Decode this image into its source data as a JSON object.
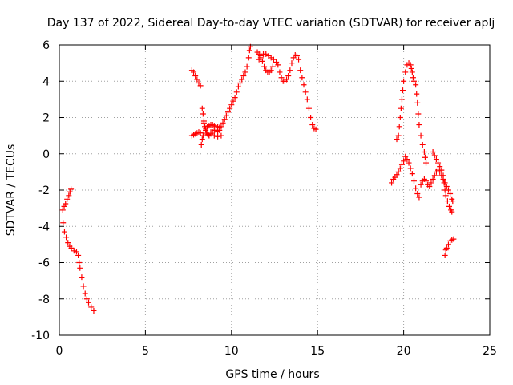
{
  "chart_data": {
    "type": "scatter",
    "title": "Day 137 of 2022, Sidereal Day-to-day VTEC variation (SDTVAR) for receiver aplj",
    "xlabel": "GPS time / hours",
    "ylabel": "SDTVAR / TECUs",
    "xlim": [
      0,
      25
    ],
    "ylim": [
      -10,
      6
    ],
    "xticks": [
      "0",
      "5",
      "10",
      "15",
      "20",
      "25"
    ],
    "yticks": [
      "-10",
      "-8",
      "-6",
      "-4",
      "-2",
      "0",
      "2",
      "4",
      "6"
    ],
    "grid": true,
    "marker": "plus",
    "color": "#ff0000",
    "series": [
      {
        "points": [
          [
            0.2,
            -3.1
          ],
          [
            0.28,
            -2.9
          ],
          [
            0.36,
            -2.75
          ],
          [
            0.45,
            -2.5
          ],
          [
            0.55,
            -2.3
          ],
          [
            0.62,
            -2.1
          ],
          [
            0.68,
            -1.95
          ]
        ]
      },
      {
        "points": [
          [
            0.22,
            -3.8
          ],
          [
            0.3,
            -4.3
          ],
          [
            0.4,
            -4.6
          ],
          [
            0.5,
            -4.9
          ],
          [
            0.6,
            -5.1
          ],
          [
            0.7,
            -5.2
          ],
          [
            0.85,
            -5.35
          ],
          [
            1.0,
            -5.4
          ],
          [
            1.1,
            -5.6
          ],
          [
            1.15,
            -6.0
          ],
          [
            1.2,
            -6.3
          ],
          [
            1.3,
            -6.8
          ],
          [
            1.4,
            -7.3
          ],
          [
            1.5,
            -7.7
          ],
          [
            1.6,
            -8.0
          ],
          [
            1.7,
            -8.2
          ],
          [
            1.85,
            -8.45
          ],
          [
            2.0,
            -8.65
          ]
        ]
      },
      {
        "points": [
          [
            7.7,
            4.6
          ],
          [
            7.8,
            4.5
          ],
          [
            7.9,
            4.3
          ],
          [
            8.0,
            4.1
          ],
          [
            8.1,
            3.9
          ],
          [
            8.2,
            3.75
          ]
        ]
      },
      {
        "points": [
          [
            7.7,
            1.0
          ],
          [
            7.8,
            1.05
          ],
          [
            7.9,
            1.1
          ],
          [
            8.0,
            1.15
          ],
          [
            8.1,
            1.2
          ],
          [
            8.2,
            1.15
          ]
        ]
      },
      {
        "points": [
          [
            8.3,
            2.5
          ],
          [
            8.35,
            2.2
          ],
          [
            8.4,
            1.8
          ],
          [
            8.45,
            1.5
          ],
          [
            8.5,
            1.3
          ],
          [
            8.55,
            1.2
          ],
          [
            8.6,
            1.1
          ],
          [
            8.65,
            1.05
          ],
          [
            8.7,
            1.0
          ],
          [
            8.8,
            1.1
          ],
          [
            8.9,
            1.2
          ],
          [
            9.0,
            1.3
          ],
          [
            9.1,
            1.3
          ],
          [
            9.2,
            1.25
          ]
        ]
      },
      {
        "points": [
          [
            8.25,
            0.5
          ],
          [
            8.3,
            0.8
          ],
          [
            8.35,
            1.0
          ],
          [
            8.4,
            1.2
          ],
          [
            8.5,
            1.4
          ],
          [
            8.6,
            1.5
          ],
          [
            8.7,
            1.55
          ],
          [
            8.8,
            1.6
          ],
          [
            8.9,
            1.6
          ],
          [
            9.0,
            1.55
          ],
          [
            9.1,
            1.5
          ],
          [
            9.2,
            1.5
          ],
          [
            9.3,
            1.45
          ]
        ]
      },
      {
        "points": [
          [
            8.4,
            1.7
          ],
          [
            8.6,
            1.5
          ],
          [
            8.8,
            1.2
          ],
          [
            9.0,
            1.0
          ],
          [
            9.2,
            0.95
          ],
          [
            9.4,
            1.0
          ]
        ]
      },
      {
        "points": [
          [
            9.3,
            1.3
          ],
          [
            9.4,
            1.5
          ],
          [
            9.5,
            1.7
          ],
          [
            9.6,
            1.9
          ],
          [
            9.7,
            2.1
          ],
          [
            9.8,
            2.3
          ],
          [
            9.9,
            2.5
          ],
          [
            10.0,
            2.7
          ],
          [
            10.1,
            2.9
          ],
          [
            10.2,
            3.1
          ],
          [
            10.3,
            3.4
          ],
          [
            10.4,
            3.7
          ],
          [
            10.5,
            3.9
          ],
          [
            10.6,
            4.1
          ],
          [
            10.7,
            4.3
          ],
          [
            10.8,
            4.5
          ],
          [
            10.9,
            4.8
          ],
          [
            11.0,
            5.3
          ],
          [
            11.05,
            5.7
          ],
          [
            11.1,
            5.9
          ]
        ]
      },
      {
        "points": [
          [
            11.5,
            5.6
          ],
          [
            11.6,
            5.5
          ],
          [
            11.7,
            5.3
          ],
          [
            11.8,
            5.1
          ],
          [
            11.9,
            4.8
          ],
          [
            12.0,
            4.6
          ],
          [
            12.1,
            4.5
          ],
          [
            12.2,
            4.5
          ],
          [
            12.3,
            4.6
          ],
          [
            12.4,
            4.8
          ]
        ]
      },
      {
        "points": [
          [
            11.6,
            5.2
          ],
          [
            11.7,
            5.4
          ],
          [
            11.85,
            5.5
          ],
          [
            12.0,
            5.5
          ],
          [
            12.15,
            5.4
          ],
          [
            12.3,
            5.3
          ],
          [
            12.45,
            5.2
          ],
          [
            12.6,
            5.05
          ],
          [
            12.7,
            4.9
          ],
          [
            12.8,
            4.5
          ],
          [
            12.9,
            4.2
          ],
          [
            13.0,
            4.0
          ],
          [
            13.1,
            4.0
          ],
          [
            13.2,
            4.1
          ],
          [
            13.3,
            4.3
          ],
          [
            13.4,
            4.6
          ],
          [
            13.5,
            5.0
          ],
          [
            13.6,
            5.3
          ],
          [
            13.7,
            5.45
          ],
          [
            13.8,
            5.4
          ],
          [
            13.9,
            5.2
          ]
        ]
      },
      {
        "points": [
          [
            14.0,
            4.6
          ],
          [
            14.1,
            4.2
          ],
          [
            14.2,
            3.8
          ],
          [
            14.3,
            3.4
          ],
          [
            14.4,
            3.0
          ],
          [
            14.5,
            2.5
          ],
          [
            14.6,
            2.0
          ],
          [
            14.7,
            1.6
          ],
          [
            14.8,
            1.4
          ],
          [
            14.9,
            1.35
          ]
        ]
      },
      {
        "points": [
          [
            19.3,
            -1.6
          ],
          [
            19.4,
            -1.4
          ],
          [
            19.5,
            -1.3
          ],
          [
            19.6,
            -1.15
          ],
          [
            19.7,
            -1.0
          ],
          [
            19.8,
            -0.8
          ],
          [
            19.9,
            -0.6
          ],
          [
            20.0,
            -0.4
          ],
          [
            20.1,
            -0.15
          ],
          [
            20.2,
            -0.3
          ],
          [
            20.3,
            -0.5
          ],
          [
            20.4,
            -0.8
          ],
          [
            20.5,
            -1.1
          ],
          [
            20.6,
            -1.5
          ],
          [
            20.7,
            -1.9
          ],
          [
            20.8,
            -2.2
          ],
          [
            20.9,
            -2.4
          ]
        ]
      },
      {
        "points": [
          [
            19.6,
            0.8
          ],
          [
            19.7,
            1.0
          ],
          [
            19.75,
            1.5
          ],
          [
            19.8,
            2.0
          ],
          [
            19.85,
            2.5
          ],
          [
            19.9,
            3.0
          ],
          [
            19.95,
            3.5
          ],
          [
            20.0,
            4.0
          ],
          [
            20.1,
            4.5
          ],
          [
            20.2,
            4.9
          ],
          [
            20.3,
            5.0
          ],
          [
            20.4,
            4.9
          ],
          [
            20.45,
            4.7
          ],
          [
            20.5,
            4.5
          ],
          [
            20.55,
            4.2
          ],
          [
            20.6,
            4.0
          ],
          [
            20.7,
            3.8
          ],
          [
            20.75,
            3.3
          ],
          [
            20.8,
            2.8
          ],
          [
            20.85,
            2.2
          ],
          [
            20.9,
            1.6
          ],
          [
            21.0,
            1.0
          ],
          [
            21.1,
            0.5
          ],
          [
            21.2,
            0.1
          ],
          [
            21.25,
            -0.2
          ],
          [
            21.3,
            -0.5
          ]
        ]
      },
      {
        "points": [
          [
            21.0,
            -1.7
          ],
          [
            21.1,
            -1.5
          ],
          [
            21.2,
            -1.4
          ],
          [
            21.3,
            -1.5
          ],
          [
            21.4,
            -1.7
          ]
        ]
      },
      {
        "points": [
          [
            21.5,
            -1.8
          ],
          [
            21.6,
            -1.6
          ],
          [
            21.7,
            -1.4
          ],
          [
            21.8,
            -1.2
          ],
          [
            21.9,
            -1.0
          ],
          [
            22.0,
            -0.9
          ],
          [
            22.1,
            -1.0
          ],
          [
            22.2,
            -1.2
          ],
          [
            22.3,
            -1.4
          ],
          [
            22.4,
            -1.6
          ],
          [
            22.5,
            -1.8
          ],
          [
            22.6,
            -2.0
          ],
          [
            22.7,
            -2.2
          ],
          [
            22.8,
            -2.5
          ],
          [
            22.85,
            -2.6
          ]
        ]
      },
      {
        "points": [
          [
            21.7,
            0.1
          ],
          [
            21.8,
            -0.1
          ],
          [
            21.9,
            -0.3
          ],
          [
            22.0,
            -0.5
          ],
          [
            22.1,
            -0.7
          ],
          [
            22.2,
            -0.9
          ],
          [
            22.3,
            -1.2
          ],
          [
            22.35,
            -1.6
          ],
          [
            22.4,
            -2.0
          ],
          [
            22.45,
            -2.3
          ],
          [
            22.55,
            -2.6
          ],
          [
            22.65,
            -2.9
          ],
          [
            22.75,
            -3.1
          ],
          [
            22.8,
            -3.2
          ]
        ]
      },
      {
        "points": [
          [
            22.4,
            -5.6
          ],
          [
            22.45,
            -5.3
          ],
          [
            22.5,
            -5.2
          ],
          [
            22.6,
            -5.0
          ],
          [
            22.7,
            -4.8
          ],
          [
            22.8,
            -4.75
          ],
          [
            22.9,
            -4.7
          ]
        ]
      }
    ]
  }
}
